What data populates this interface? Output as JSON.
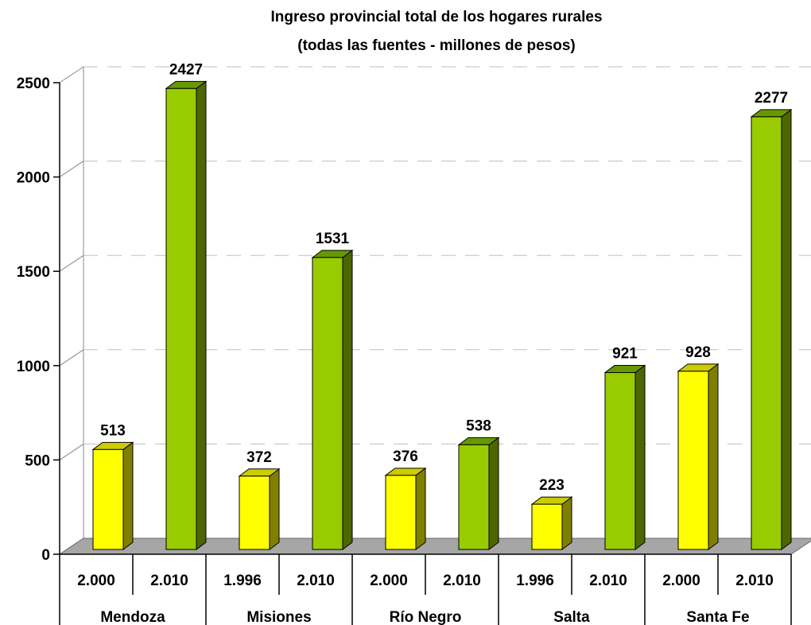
{
  "chart_data": {
    "type": "bar",
    "title": "Ingreso provincial total de los hogares rurales",
    "subtitle": "(todas las fuentes -  millones de pesos)",
    "xlabel": "",
    "ylabel": "",
    "ylim": [
      0,
      2500
    ],
    "yticks": [
      0,
      500,
      1000,
      1500,
      2000,
      2500
    ],
    "grid": true,
    "legend": "none",
    "groups": [
      {
        "name": "Mendoza",
        "bars": [
          {
            "label": "2.000",
            "value": 513
          },
          {
            "label": "2.010",
            "value": 2427
          }
        ]
      },
      {
        "name": "Misiones",
        "bars": [
          {
            "label": "1.996",
            "value": 372
          },
          {
            "label": "2.010",
            "value": 1531
          }
        ]
      },
      {
        "name": "Río Negro",
        "bars": [
          {
            "label": "2.000",
            "value": 376
          },
          {
            "label": "2.010",
            "value": 538
          }
        ]
      },
      {
        "name": "Salta",
        "bars": [
          {
            "label": "1.996",
            "value": 223
          },
          {
            "label": "2.010",
            "value": 921
          }
        ]
      },
      {
        "name": "Santa Fe",
        "bars": [
          {
            "label": "2.000",
            "value": 928
          },
          {
            "label": "2.010",
            "value": 2277
          }
        ]
      }
    ],
    "colors": {
      "early": {
        "front": "#FFFF00",
        "side": "#808000",
        "top": "#CCCC00"
      },
      "late": {
        "front": "#99CC00",
        "side": "#4D6600",
        "top": "#669900"
      },
      "floor": "#A6A6A6",
      "grid": "#BFBFBF"
    }
  }
}
